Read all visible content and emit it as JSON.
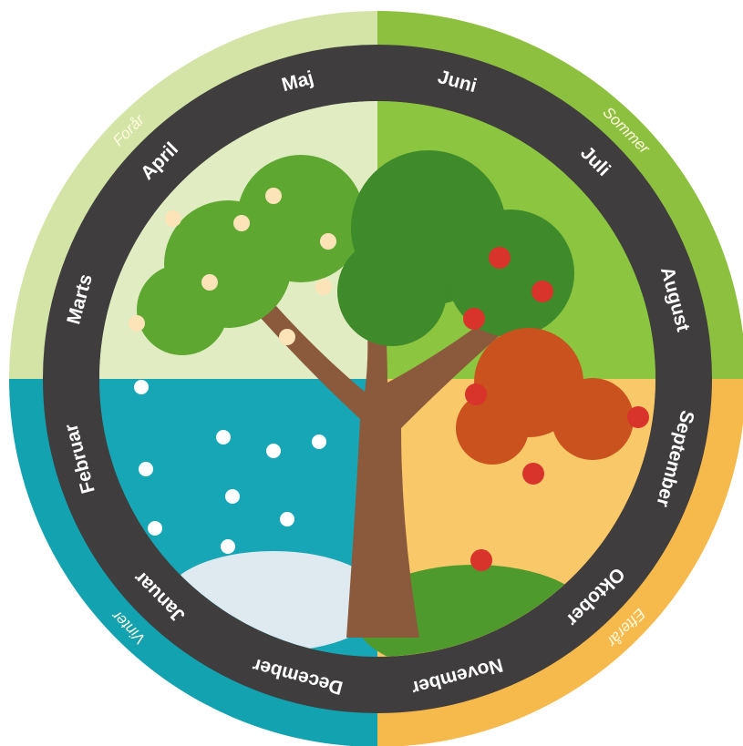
{
  "months": [
    "Januar",
    "Februar",
    "Marts",
    "April",
    "Maj",
    "Juni",
    "Juli",
    "August",
    "September",
    "Oktober",
    "November",
    "December"
  ],
  "seasons": [
    "Forår",
    "Sommer",
    "Efterår",
    "Vinter"
  ]
}
